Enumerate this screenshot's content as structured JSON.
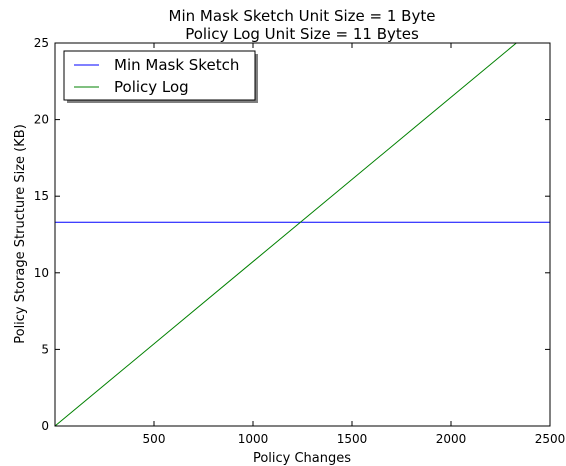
{
  "chart_data": {
    "type": "line",
    "title": "Min Mask Sketch Unit Size = 1 Byte",
    "subtitle": "Policy Log Unit Size = 11 Bytes",
    "xlabel": "Policy Changes",
    "ylabel": "Policy Storage Structure Size (KB)",
    "xlim": [
      0,
      2500
    ],
    "ylim": [
      0,
      25
    ],
    "xticks": [
      500,
      1000,
      1500,
      2000,
      2500
    ],
    "yticks": [
      0,
      5,
      10,
      15,
      20,
      25
    ],
    "grid": false,
    "legend_position": "top-left",
    "series": [
      {
        "name": "Min Mask Sketch",
        "color": "#0000ff",
        "x": [
          0,
          2500
        ],
        "y": [
          13.3,
          13.3
        ]
      },
      {
        "name": "Policy Log",
        "color": "#008000",
        "x": [
          0,
          2330
        ],
        "y": [
          0,
          25
        ]
      }
    ]
  }
}
